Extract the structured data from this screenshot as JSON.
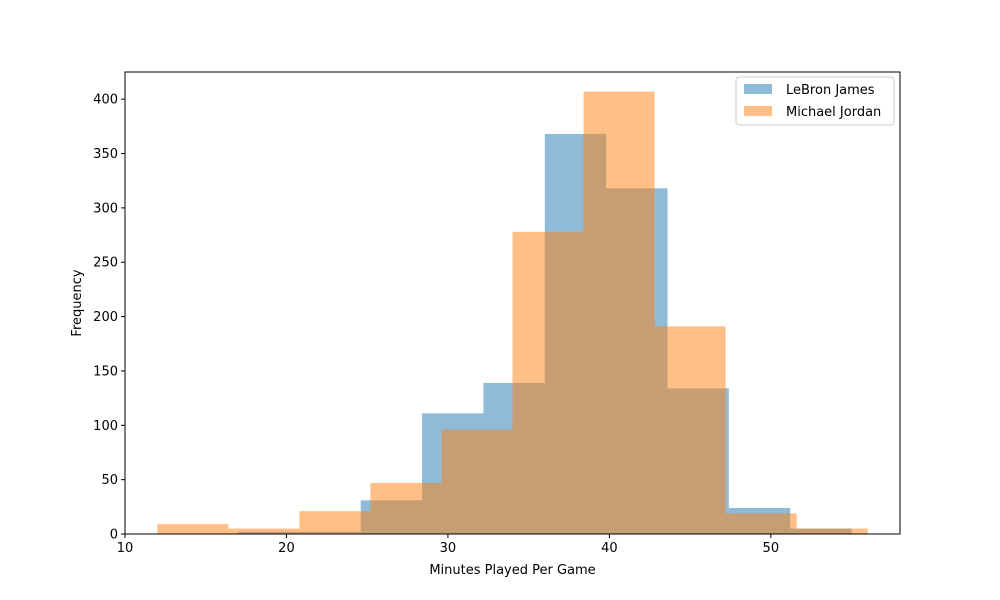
{
  "chart_data": {
    "type": "bar",
    "title": "",
    "xlabel": "Minutes Played Per Game",
    "ylabel": "Frequency",
    "xlim": [
      10,
      58
    ],
    "ylim": [
      0,
      425
    ],
    "x_ticks": [
      "10",
      "20",
      "30",
      "40",
      "50"
    ],
    "y_ticks": [
      "0",
      "50",
      "100",
      "150",
      "200",
      "250",
      "300",
      "350",
      "400"
    ],
    "legend_position": "top-right",
    "grid": false,
    "series": [
      {
        "name": "LeBron James",
        "color": "#1f77b4",
        "opacity": 0.5,
        "bins": [
          {
            "x0": 17.0,
            "x1": 20.8,
            "value": 2
          },
          {
            "x0": 20.8,
            "x1": 24.6,
            "value": 2
          },
          {
            "x0": 24.6,
            "x1": 28.4,
            "value": 31
          },
          {
            "x0": 28.4,
            "x1": 32.2,
            "value": 111
          },
          {
            "x0": 32.2,
            "x1": 36.0,
            "value": 139
          },
          {
            "x0": 36.0,
            "x1": 39.8,
            "value": 368
          },
          {
            "x0": 39.8,
            "x1": 43.6,
            "value": 318
          },
          {
            "x0": 43.6,
            "x1": 47.4,
            "value": 134
          },
          {
            "x0": 47.4,
            "x1": 51.2,
            "value": 24
          },
          {
            "x0": 51.2,
            "x1": 55.0,
            "value": 5
          }
        ]
      },
      {
        "name": "Michael Jordan",
        "color": "#ff7f0e",
        "opacity": 0.5,
        "bins": [
          {
            "x0": 12.0,
            "x1": 16.4,
            "value": 9
          },
          {
            "x0": 16.4,
            "x1": 20.8,
            "value": 5
          },
          {
            "x0": 20.8,
            "x1": 25.2,
            "value": 21
          },
          {
            "x0": 25.2,
            "x1": 29.6,
            "value": 47
          },
          {
            "x0": 29.6,
            "x1": 34.0,
            "value": 96
          },
          {
            "x0": 34.0,
            "x1": 38.4,
            "value": 278
          },
          {
            "x0": 38.4,
            "x1": 42.8,
            "value": 407
          },
          {
            "x0": 42.8,
            "x1": 47.2,
            "value": 191
          },
          {
            "x0": 47.2,
            "x1": 51.6,
            "value": 19
          },
          {
            "x0": 51.6,
            "x1": 56.0,
            "value": 5
          }
        ]
      }
    ]
  }
}
